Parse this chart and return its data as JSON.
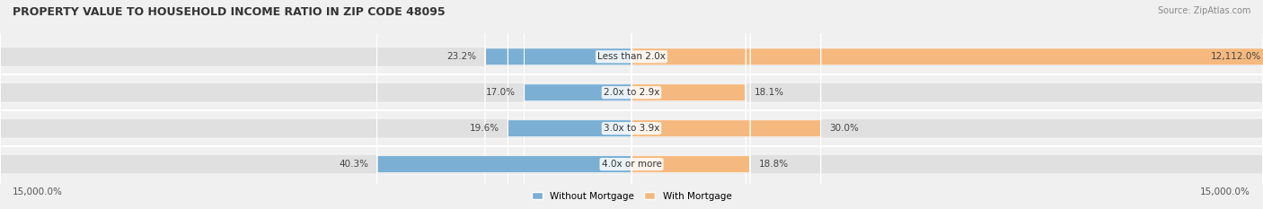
{
  "title": "PROPERTY VALUE TO HOUSEHOLD INCOME RATIO IN ZIP CODE 48095",
  "source": "Source: ZipAtlas.com",
  "categories": [
    "Less than 2.0x",
    "2.0x to 2.9x",
    "3.0x to 3.9x",
    "4.0x or more"
  ],
  "without_mortgage": [
    23.2,
    17.0,
    19.6,
    40.3
  ],
  "with_mortgage": [
    12112.0,
    18.1,
    30.0,
    18.8
  ],
  "color_without": "#7bafd4",
  "color_with": "#f5b97f",
  "bg_color": "#f0f0f0",
  "bar_bg_color": "#e8e8e8",
  "axis_limit": 15000.0,
  "legend_labels": [
    "Without Mortgage",
    "With Mortgage"
  ],
  "xlabel_left": "15,000.0%",
  "xlabel_right": "15,000.0%"
}
